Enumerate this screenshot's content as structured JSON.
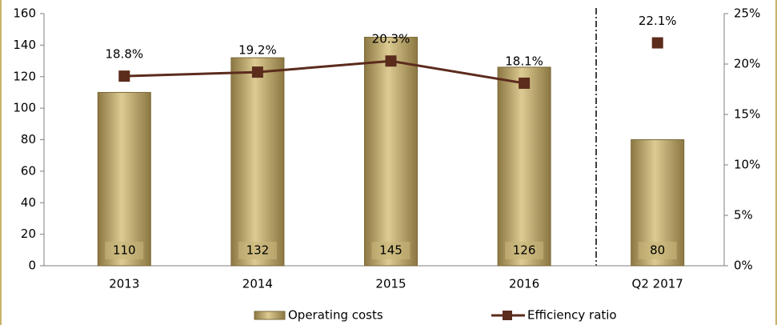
{
  "chart_data": {
    "type": "bar_line",
    "categories": [
      "2013",
      "2014",
      "2015",
      "2016",
      "Q2 2017"
    ],
    "series": [
      {
        "name": "Operating costs",
        "type": "bar",
        "color": "#b8a263",
        "values": [
          110,
          132,
          145,
          126,
          80
        ]
      },
      {
        "name": "Efficiency ratio",
        "type": "line",
        "axis": "y2",
        "color": "#5b2b1c",
        "values": [
          18.8,
          19.2,
          20.3,
          18.1,
          22.1
        ],
        "value_labels": [
          "18.8%",
          "19.2%",
          "20.3%",
          "18.1%",
          "22.1%"
        ]
      }
    ],
    "ylim": [
      0,
      160
    ],
    "yticks": [
      0,
      20,
      40,
      60,
      80,
      100,
      120,
      140,
      160
    ],
    "y2lim": [
      0,
      25
    ],
    "y2ticks": [
      {
        "value": 0,
        "label": "0%"
      },
      {
        "value": 5,
        "label": "5%"
      },
      {
        "value": 10,
        "label": "10%"
      },
      {
        "value": 15,
        "label": "15%"
      },
      {
        "value": 20,
        "label": "20%"
      },
      {
        "value": 25,
        "label": "25%"
      }
    ],
    "legend": "bottom"
  }
}
